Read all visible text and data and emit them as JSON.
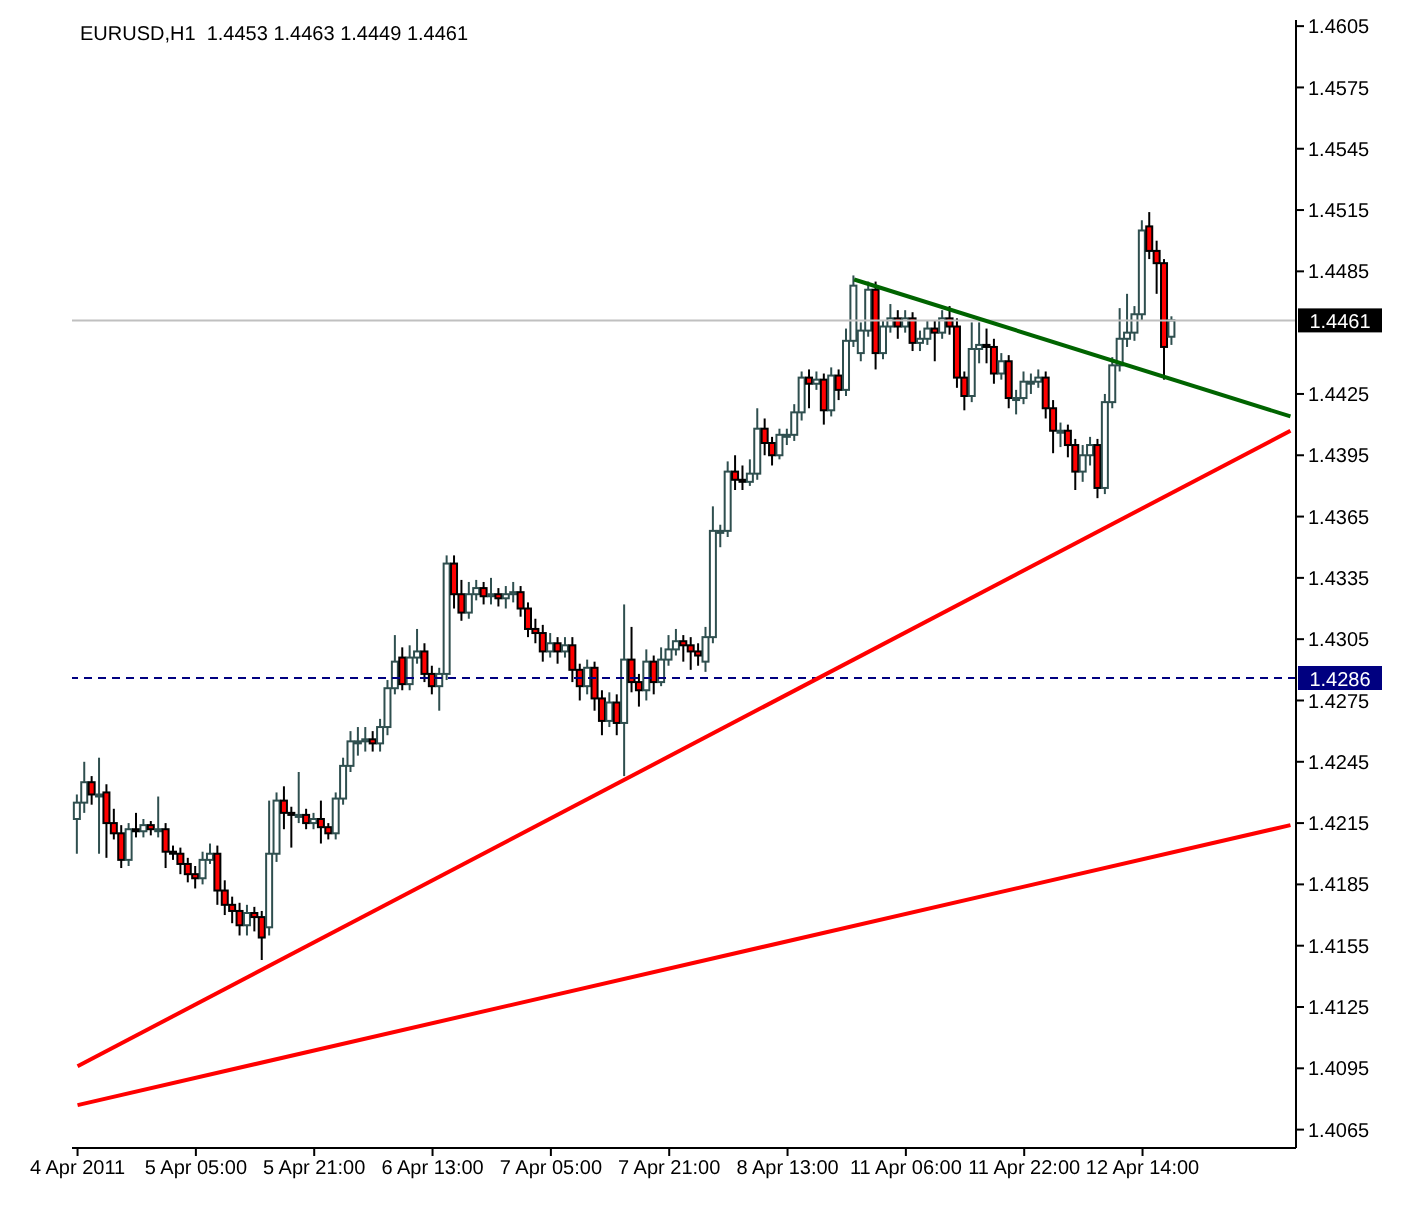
{
  "chart_data": {
    "type": "candlestick",
    "title": "EURUSD,H1  1.4453 1.4463 1.4449 1.4461",
    "categories": [
      "4 Apr 2011",
      null,
      null,
      null,
      null,
      null,
      null,
      null,
      null,
      null,
      null,
      null,
      null,
      null,
      null,
      null,
      "5 Apr 05:00",
      null,
      null,
      null,
      null,
      null,
      null,
      null,
      null,
      null,
      null,
      null,
      null,
      null,
      null,
      null,
      "5 Apr 21:00",
      null,
      null,
      null,
      null,
      null,
      null,
      null,
      null,
      null,
      null,
      null,
      null,
      null,
      null,
      null,
      "6 Apr 13:00",
      null,
      null,
      null,
      null,
      null,
      null,
      null,
      null,
      null,
      null,
      null,
      null,
      null,
      null,
      null,
      "7 Apr 05:00",
      null,
      null,
      null,
      null,
      null,
      null,
      null,
      null,
      null,
      null,
      null,
      null,
      null,
      null,
      null,
      "7 Apr 21:00",
      null,
      null,
      null,
      null,
      null,
      null,
      null,
      null,
      null,
      null,
      null,
      null,
      null,
      null,
      null,
      "8 Apr 13:00",
      null,
      null,
      null,
      null,
      null,
      null,
      null,
      null,
      null,
      null,
      null,
      null,
      null,
      null,
      null,
      "11 Apr 06:00",
      null,
      null,
      null,
      null,
      null,
      null,
      null,
      null,
      null,
      null,
      null,
      null,
      null,
      null,
      null,
      "11 Apr 22:00",
      null,
      null,
      null,
      null,
      null,
      null,
      null,
      null,
      null,
      null,
      null,
      null,
      null,
      null,
      null,
      "12 Apr 14:00",
      null,
      null,
      null,
      null,
      null,
      null,
      null,
      null,
      null,
      null,
      null,
      null,
      null,
      null,
      null,
      null,
      null,
      null,
      null,
      null
    ],
    "ohlc": [
      [
        1.4217,
        1.4229,
        1.42,
        1.4225
      ],
      [
        1.4225,
        1.4245,
        1.422,
        1.4235
      ],
      [
        1.4235,
        1.4238,
        1.4224,
        1.4229
      ],
      [
        1.4229,
        1.4247,
        1.42,
        1.4229
      ],
      [
        1.423,
        1.4234,
        1.4198,
        1.4215
      ],
      [
        1.4215,
        1.4222,
        1.4207,
        1.421
      ],
      [
        1.421,
        1.4214,
        1.4193,
        1.4197
      ],
      [
        1.4197,
        1.4215,
        1.4194,
        1.4212
      ],
      [
        1.4212,
        1.422,
        1.4208,
        1.4211
      ],
      [
        1.4211,
        1.4217,
        1.4208,
        1.4214
      ],
      [
        1.4214,
        1.4216,
        1.4209,
        1.4212
      ],
      [
        1.4212,
        1.4228,
        1.4208,
        1.4212
      ],
      [
        1.4212,
        1.4215,
        1.4193,
        1.4201
      ],
      [
        1.4201,
        1.4204,
        1.4197,
        1.42
      ],
      [
        1.42,
        1.4203,
        1.419,
        1.4195
      ],
      [
        1.4195,
        1.4198,
        1.4186,
        1.419
      ],
      [
        1.419,
        1.4194,
        1.4183,
        1.4188
      ],
      [
        1.4188,
        1.4201,
        1.4185,
        1.4197
      ],
      [
        1.4197,
        1.4205,
        1.4195,
        1.42
      ],
      [
        1.42,
        1.4204,
        1.4175,
        1.4182
      ],
      [
        1.4182,
        1.4187,
        1.417,
        1.4175
      ],
      [
        1.4175,
        1.4179,
        1.4166,
        1.4172
      ],
      [
        1.4172,
        1.4176,
        1.416,
        1.4165
      ],
      [
        1.4165,
        1.4175,
        1.416,
        1.4171
      ],
      [
        1.4171,
        1.4174,
        1.4162,
        1.4169
      ],
      [
        1.4169,
        1.4172,
        1.4148,
        1.4159
      ],
      [
        1.4164,
        1.4226,
        1.416,
        1.42
      ],
      [
        1.42,
        1.423,
        1.4196,
        1.4226
      ],
      [
        1.4226,
        1.4233,
        1.4212,
        1.422
      ],
      [
        1.422,
        1.4223,
        1.4203,
        1.4219
      ],
      [
        1.4219,
        1.424,
        1.4215,
        1.4219
      ],
      [
        1.4219,
        1.4222,
        1.4212,
        1.4215
      ],
      [
        1.4215,
        1.422,
        1.4212,
        1.4217
      ],
      [
        1.4217,
        1.4226,
        1.4205,
        1.4213
      ],
      [
        1.4213,
        1.4215,
        1.4207,
        1.421
      ],
      [
        1.421,
        1.423,
        1.4207,
        1.4227
      ],
      [
        1.4227,
        1.4247,
        1.4224,
        1.4243
      ],
      [
        1.4243,
        1.426,
        1.424,
        1.4255
      ],
      [
        1.4255,
        1.4262,
        1.4248,
        1.4255
      ],
      [
        1.4255,
        1.4262,
        1.425,
        1.4256
      ],
      [
        1.4256,
        1.426,
        1.425,
        1.4254
      ],
      [
        1.4254,
        1.4266,
        1.425,
        1.4262
      ],
      [
        1.4262,
        1.4285,
        1.4258,
        1.4281
      ],
      [
        1.4281,
        1.4307,
        1.4278,
        1.4294
      ],
      [
        1.4296,
        1.4301,
        1.428,
        1.4283
      ],
      [
        1.4283,
        1.4302,
        1.428,
        1.4296
      ],
      [
        1.4296,
        1.431,
        1.4293,
        1.4299
      ],
      [
        1.4299,
        1.4303,
        1.4284,
        1.4288
      ],
      [
        1.4288,
        1.4292,
        1.4278,
        1.4282
      ],
      [
        1.4282,
        1.4291,
        1.427,
        1.4288
      ],
      [
        1.4288,
        1.4346,
        1.4285,
        1.4342
      ],
      [
        1.4342,
        1.4346,
        1.432,
        1.4327
      ],
      [
        1.4327,
        1.4334,
        1.4314,
        1.4318
      ],
      [
        1.4318,
        1.4333,
        1.4315,
        1.4327
      ],
      [
        1.4327,
        1.4334,
        1.4324,
        1.433
      ],
      [
        1.433,
        1.4333,
        1.4322,
        1.4326
      ],
      [
        1.4326,
        1.4335,
        1.4322,
        1.4327
      ],
      [
        1.4327,
        1.433,
        1.4321,
        1.4325
      ],
      [
        1.4325,
        1.4331,
        1.432,
        1.4327
      ],
      [
        1.4327,
        1.4333,
        1.4323,
        1.4328
      ],
      [
        1.4328,
        1.4331,
        1.4316,
        1.432
      ],
      [
        1.432,
        1.4323,
        1.4306,
        1.431
      ],
      [
        1.431,
        1.4315,
        1.4303,
        1.4308
      ],
      [
        1.4308,
        1.4312,
        1.4294,
        1.4299
      ],
      [
        1.4299,
        1.4308,
        1.4296,
        1.4303
      ],
      [
        1.4303,
        1.4306,
        1.4293,
        1.4299
      ],
      [
        1.4299,
        1.4306,
        1.4296,
        1.4302
      ],
      [
        1.4302,
        1.4306,
        1.4284,
        1.429
      ],
      [
        1.429,
        1.4293,
        1.4275,
        1.4282
      ],
      [
        1.4282,
        1.4295,
        1.4278,
        1.4291
      ],
      [
        1.4291,
        1.4294,
        1.427,
        1.4276
      ],
      [
        1.4276,
        1.428,
        1.4258,
        1.4265
      ],
      [
        1.4265,
        1.4279,
        1.4262,
        1.4274
      ],
      [
        1.4274,
        1.4278,
        1.4258,
        1.4264
      ],
      [
        1.4264,
        1.4322,
        1.4238,
        1.4295
      ],
      [
        1.4295,
        1.4311,
        1.4279,
        1.4284
      ],
      [
        1.4284,
        1.4288,
        1.4272,
        1.428
      ],
      [
        1.428,
        1.43,
        1.4275,
        1.4294
      ],
      [
        1.4294,
        1.4297,
        1.4278,
        1.4284
      ],
      [
        1.4284,
        1.4301,
        1.4282,
        1.4295
      ],
      [
        1.4295,
        1.4307,
        1.4292,
        1.43
      ],
      [
        1.43,
        1.431,
        1.4297,
        1.4304
      ],
      [
        1.4304,
        1.4307,
        1.4294,
        1.4302
      ],
      [
        1.4302,
        1.4306,
        1.429,
        1.4299
      ],
      [
        1.4299,
        1.4303,
        1.4292,
        1.4297
      ],
      [
        1.4294,
        1.4311,
        1.4289,
        1.4306
      ],
      [
        1.4306,
        1.437,
        1.4303,
        1.4358
      ],
      [
        1.4358,
        1.4361,
        1.435,
        1.4358
      ],
      [
        1.4358,
        1.4392,
        1.4355,
        1.4387
      ],
      [
        1.4387,
        1.4395,
        1.4378,
        1.4383
      ],
      [
        1.4383,
        1.439,
        1.4378,
        1.4382
      ],
      [
        1.4382,
        1.4393,
        1.438,
        1.4386
      ],
      [
        1.4386,
        1.4418,
        1.4383,
        1.4408
      ],
      [
        1.4408,
        1.4413,
        1.4395,
        1.4401
      ],
      [
        1.4401,
        1.4404,
        1.439,
        1.4395
      ],
      [
        1.4395,
        1.4408,
        1.4393,
        1.4405
      ],
      [
        1.4405,
        1.4408,
        1.44,
        1.4405
      ],
      [
        1.4405,
        1.442,
        1.4402,
        1.4416
      ],
      [
        1.4416,
        1.4436,
        1.4412,
        1.4433
      ],
      [
        1.4433,
        1.4437,
        1.4418,
        1.443
      ],
      [
        1.443,
        1.4436,
        1.4427,
        1.4432
      ],
      [
        1.4432,
        1.4435,
        1.441,
        1.4417
      ],
      [
        1.4417,
        1.4438,
        1.4414,
        1.4434
      ],
      [
        1.4434,
        1.4437,
        1.4422,
        1.4427
      ],
      [
        1.4427,
        1.4457,
        1.4424,
        1.4451
      ],
      [
        1.4451,
        1.4483,
        1.4448,
        1.4478
      ],
      [
        1.4445,
        1.446,
        1.4441,
        1.4456
      ],
      [
        1.4456,
        1.448,
        1.4453,
        1.4476
      ],
      [
        1.4476,
        1.448,
        1.4437,
        1.4445
      ],
      [
        1.4445,
        1.4461,
        1.4442,
        1.4458
      ],
      [
        1.4458,
        1.4469,
        1.4455,
        1.4462
      ],
      [
        1.4462,
        1.4466,
        1.4452,
        1.4458
      ],
      [
        1.4458,
        1.4466,
        1.4455,
        1.4462
      ],
      [
        1.4462,
        1.4465,
        1.4446,
        1.445
      ],
      [
        1.445,
        1.4456,
        1.4446,
        1.4452
      ],
      [
        1.4452,
        1.4461,
        1.4449,
        1.4457
      ],
      [
        1.4457,
        1.4461,
        1.4441,
        1.4455
      ],
      [
        1.4455,
        1.4466,
        1.4452,
        1.4462
      ],
      [
        1.4462,
        1.4468,
        1.4454,
        1.4458
      ],
      [
        1.4458,
        1.4462,
        1.4428,
        1.4433
      ],
      [
        1.4433,
        1.4436,
        1.4417,
        1.4424
      ],
      [
        1.4424,
        1.446,
        1.4421,
        1.4447
      ],
      [
        1.4447,
        1.446,
        1.444,
        1.4449
      ],
      [
        1.4449,
        1.4457,
        1.444,
        1.4448
      ],
      [
        1.4448,
        1.4452,
        1.443,
        1.4435
      ],
      [
        1.4435,
        1.4445,
        1.4432,
        1.4441
      ],
      [
        1.4441,
        1.4444,
        1.4418,
        1.4423
      ],
      [
        1.4423,
        1.4427,
        1.4415,
        1.4423
      ],
      [
        1.4423,
        1.4436,
        1.442,
        1.4431
      ],
      [
        1.4431,
        1.4435,
        1.4425,
        1.4431
      ],
      [
        1.4431,
        1.4437,
        1.4428,
        1.4433
      ],
      [
        1.4433,
        1.4436,
        1.4413,
        1.4418
      ],
      [
        1.4418,
        1.4422,
        1.4396,
        1.4407
      ],
      [
        1.4407,
        1.4411,
        1.4399,
        1.4407
      ],
      [
        1.4407,
        1.441,
        1.4394,
        1.44
      ],
      [
        1.44,
        1.4403,
        1.4378,
        1.4387
      ],
      [
        1.4387,
        1.44,
        1.4382,
        1.4395
      ],
      [
        1.4395,
        1.4404,
        1.439,
        1.44
      ],
      [
        1.44,
        1.4403,
        1.4374,
        1.4379
      ],
      [
        1.4379,
        1.4425,
        1.4376,
        1.4421
      ],
      [
        1.4421,
        1.4443,
        1.4418,
        1.4439
      ],
      [
        1.4439,
        1.4467,
        1.4436,
        1.4452
      ],
      [
        1.4452,
        1.4474,
        1.4448,
        1.4455
      ],
      [
        1.4455,
        1.4468,
        1.4451,
        1.4464
      ],
      [
        1.4464,
        1.451,
        1.4461,
        1.4505
      ],
      [
        1.4507,
        1.4514,
        1.4491,
        1.4495
      ],
      [
        1.4495,
        1.45,
        1.4474,
        1.4489
      ],
      [
        1.4489,
        1.4491,
        1.4432,
        1.4448
      ],
      [
        1.4453,
        1.4463,
        1.4449,
        1.4461
      ],
      null,
      null,
      null,
      null,
      null,
      null,
      null,
      null,
      null,
      null,
      null,
      null,
      null,
      null,
      null,
      null
    ],
    "series": [
      {
        "type": "line",
        "color": "#ff0000",
        "values": [
          1.4096,
          null,
          null,
          null,
          null,
          null,
          null,
          null,
          null,
          null,
          null,
          null,
          null,
          null,
          null,
          null,
          null,
          null,
          null,
          null,
          null,
          null,
          null,
          null,
          null,
          null,
          null,
          null,
          null,
          null,
          null,
          null,
          null,
          null,
          null,
          null,
          null,
          null,
          null,
          null,
          null,
          null,
          null,
          null,
          null,
          null,
          null,
          null,
          null,
          null,
          null,
          null,
          null,
          null,
          null,
          null,
          null,
          null,
          null,
          null,
          null,
          null,
          null,
          null,
          null,
          null,
          null,
          null,
          null,
          null,
          null,
          null,
          null,
          null,
          null,
          null,
          null,
          null,
          null,
          null,
          null,
          null,
          null,
          null,
          null,
          null,
          null,
          null,
          null,
          null,
          null,
          null,
          null,
          null,
          null,
          null,
          null,
          null,
          null,
          null,
          null,
          null,
          null,
          null,
          null,
          null,
          null,
          null,
          null,
          null,
          null,
          null,
          null,
          null,
          null,
          null,
          null,
          null,
          null,
          null,
          null,
          null,
          null,
          null,
          null,
          null,
          null,
          null,
          null,
          null,
          null,
          null,
          null,
          null,
          null,
          null,
          null,
          null,
          null,
          null,
          null,
          null,
          null,
          null,
          null,
          null,
          null,
          null,
          null,
          null,
          null,
          null,
          null,
          null,
          null,
          null,
          null,
          null,
          null,
          null,
          null,
          null,
          null,
          null,
          1.4407
        ]
      },
      {
        "type": "line",
        "color": "#ff0000",
        "values": [
          1.4077,
          null,
          null,
          null,
          null,
          null,
          null,
          null,
          null,
          null,
          null,
          null,
          null,
          null,
          null,
          null,
          null,
          null,
          null,
          null,
          null,
          null,
          null,
          null,
          null,
          null,
          null,
          null,
          null,
          null,
          null,
          null,
          null,
          null,
          null,
          null,
          null,
          null,
          null,
          null,
          null,
          null,
          null,
          null,
          null,
          null,
          null,
          null,
          null,
          null,
          null,
          null,
          null,
          null,
          null,
          null,
          null,
          null,
          null,
          null,
          null,
          null,
          null,
          null,
          null,
          null,
          null,
          null,
          null,
          null,
          null,
          null,
          null,
          null,
          null,
          null,
          null,
          null,
          null,
          null,
          null,
          null,
          null,
          null,
          null,
          null,
          null,
          null,
          null,
          null,
          null,
          null,
          null,
          null,
          null,
          null,
          null,
          null,
          null,
          null,
          null,
          null,
          null,
          null,
          null,
          null,
          null,
          null,
          null,
          null,
          null,
          null,
          null,
          null,
          null,
          null,
          null,
          null,
          null,
          null,
          null,
          null,
          null,
          null,
          null,
          null,
          null,
          null,
          null,
          null,
          null,
          null,
          null,
          null,
          null,
          null,
          null,
          null,
          null,
          null,
          null,
          null,
          null,
          null,
          null,
          null,
          null,
          null,
          null,
          null,
          null,
          null,
          null,
          null,
          null,
          null,
          null,
          null,
          null,
          null,
          null,
          null,
          null,
          null,
          1.4214
        ]
      },
      {
        "type": "line",
        "color": "#006400",
        "values": [
          null,
          null,
          null,
          null,
          null,
          null,
          null,
          null,
          null,
          null,
          null,
          null,
          null,
          null,
          null,
          null,
          null,
          null,
          null,
          null,
          null,
          null,
          null,
          null,
          null,
          null,
          null,
          null,
          null,
          null,
          null,
          null,
          null,
          null,
          null,
          null,
          null,
          null,
          null,
          null,
          null,
          null,
          null,
          null,
          null,
          null,
          null,
          null,
          null,
          null,
          null,
          null,
          null,
          null,
          null,
          null,
          null,
          null,
          null,
          null,
          null,
          null,
          null,
          null,
          null,
          null,
          null,
          null,
          null,
          null,
          null,
          null,
          null,
          null,
          null,
          null,
          null,
          null,
          null,
          null,
          null,
          null,
          null,
          null,
          null,
          null,
          null,
          null,
          null,
          null,
          null,
          null,
          null,
          null,
          null,
          null,
          null,
          null,
          null,
          null,
          null,
          null,
          null,
          null,
          null,
          1.4481,
          null,
          null,
          null,
          null,
          null,
          null,
          null,
          null,
          null,
          null,
          null,
          null,
          null,
          null,
          null,
          null,
          null,
          null,
          null,
          null,
          null,
          null,
          null,
          null,
          null,
          null,
          null,
          null,
          null,
          null,
          null,
          null,
          null,
          null,
          null,
          null,
          null,
          null,
          null,
          null,
          null,
          null,
          null,
          null,
          null,
          null,
          null,
          null,
          null,
          null,
          null,
          null,
          null,
          null,
          null,
          null,
          null,
          null,
          1.4414
        ]
      }
    ],
    "ref_lines": [
      {
        "axis": "y",
        "value": 1.4286,
        "label": "1.4286",
        "color": "#000080",
        "line_style": "dashed"
      },
      {
        "axis": "y",
        "value": 1.4461,
        "label": "1.4461",
        "color": "#c0c0c0",
        "line_style": "solid"
      }
    ],
    "ylim": [
      1.4056,
      1.4608
    ],
    "yticks": [
      1.4065,
      1.4095,
      1.4125,
      1.4155,
      1.4185,
      1.4215,
      1.4245,
      1.4275,
      1.4305,
      1.4335,
      1.4365,
      1.4395,
      1.4425,
      1.4485,
      1.4515,
      1.4545,
      1.4575,
      1.4605
    ],
    "grid": false
  }
}
